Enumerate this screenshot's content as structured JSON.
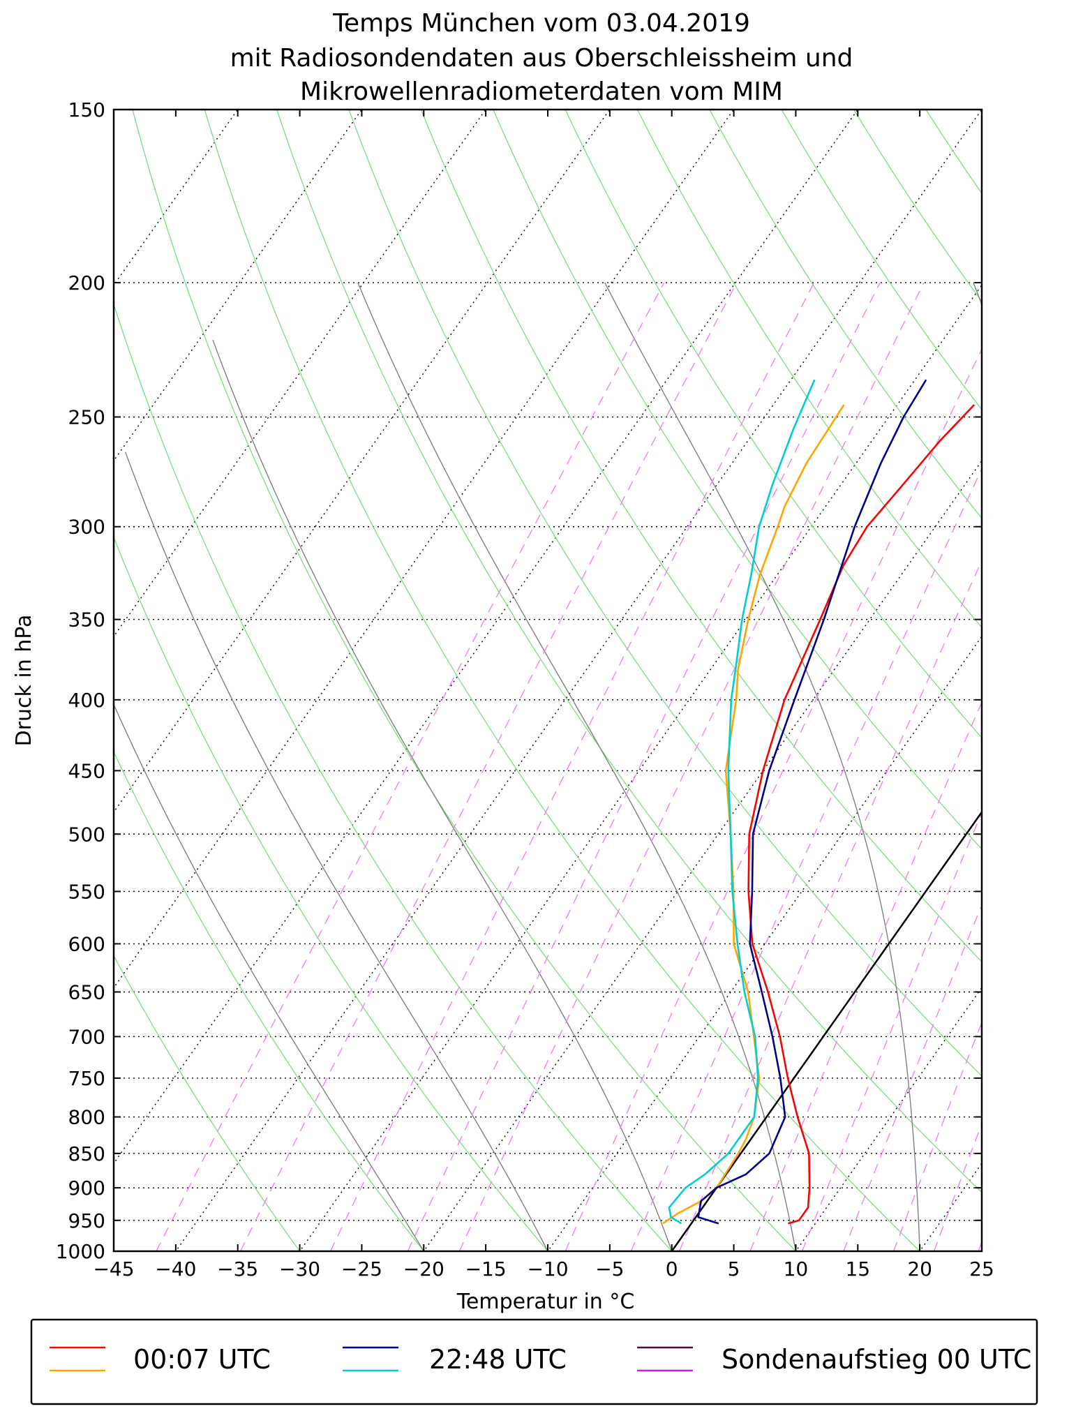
{
  "chart_data": {
    "type": "line",
    "subtype": "skew-T log-p",
    "title": [
      "Temps München vom 03.04.2019",
      "mit Radiosondendaten aus Oberschleissheim und",
      "Mikrowellenradiometerdaten vom MIM"
    ],
    "xlabel": "Temperatur in °C",
    "ylabel": "Druck in hPa",
    "xlim": [
      -45,
      25
    ],
    "ylim": [
      1000,
      150
    ],
    "x_ticks": [
      -45,
      -40,
      -35,
      -30,
      -25,
      -20,
      -15,
      -10,
      -5,
      0,
      5,
      10,
      15,
      20,
      25
    ],
    "y_ticks": [
      150,
      200,
      250,
      300,
      350,
      400,
      450,
      500,
      550,
      600,
      650,
      700,
      750,
      800,
      850,
      900,
      950,
      1000
    ],
    "series": [
      {
        "name": "00:07 UTC Temperatur",
        "color": "#ff0000",
        "points": [
          [
            -23.8,
            245
          ],
          [
            -24.5,
            260
          ],
          [
            -25,
            280
          ],
          [
            -25.5,
            300
          ],
          [
            -25.2,
            320
          ],
          [
            -24,
            350
          ],
          [
            -22.3,
            400
          ],
          [
            -20,
            450
          ],
          [
            -17.5,
            500
          ],
          [
            -14.3,
            550
          ],
          [
            -11,
            600
          ],
          [
            -7,
            650
          ],
          [
            -3.5,
            700
          ],
          [
            -0.5,
            750
          ],
          [
            2.5,
            800
          ],
          [
            5.5,
            850
          ],
          [
            7.5,
            900
          ],
          [
            8.5,
            930
          ],
          [
            8.5,
            950
          ],
          [
            7.8,
            955
          ]
        ]
      },
      {
        "name": "00:07 UTC Taupunkt",
        "color": "#ffa500",
        "points": [
          [
            -34.3,
            245
          ],
          [
            -34,
            270
          ],
          [
            -33.3,
            290
          ],
          [
            -32.7,
            300
          ],
          [
            -31.4,
            325
          ],
          [
            -29.8,
            350
          ],
          [
            -27.8,
            380
          ],
          [
            -26.2,
            400
          ],
          [
            -23,
            450
          ],
          [
            -19,
            500
          ],
          [
            -15.5,
            550
          ],
          [
            -12.5,
            600
          ],
          [
            -8.6,
            650
          ],
          [
            -5.6,
            700
          ],
          [
            -2.8,
            750
          ],
          [
            -1,
            800
          ],
          [
            -0.4,
            830
          ],
          [
            -0.2,
            850
          ],
          [
            0,
            900
          ],
          [
            -0.5,
            920
          ],
          [
            -1.7,
            940
          ],
          [
            -2.3,
            955
          ]
        ]
      },
      {
        "name": "22:48 UTC Temperatur",
        "color": "#00008b",
        "points": [
          [
            -29.1,
            235
          ],
          [
            -28.8,
            250
          ],
          [
            -28,
            270
          ],
          [
            -26.5,
            300
          ],
          [
            -23.7,
            350
          ],
          [
            -21.5,
            400
          ],
          [
            -19.5,
            450
          ],
          [
            -17.2,
            500
          ],
          [
            -14,
            550
          ],
          [
            -11.2,
            600
          ],
          [
            -7.5,
            650
          ],
          [
            -4.1,
            700
          ],
          [
            -1.1,
            750
          ],
          [
            1.5,
            800
          ],
          [
            2.3,
            850
          ],
          [
            1.6,
            880
          ],
          [
            0,
            900
          ],
          [
            -0.5,
            920
          ],
          [
            0.2,
            945
          ],
          [
            2.2,
            955
          ]
        ]
      },
      {
        "name": "22:48 UTC Taupunkt",
        "color": "#00ced1",
        "points": [
          [
            -38.1,
            235
          ],
          [
            -37,
            255
          ],
          [
            -35.5,
            280
          ],
          [
            -34.2,
            300
          ],
          [
            -32.1,
            325
          ],
          [
            -30.3,
            350
          ],
          [
            -28,
            380
          ],
          [
            -26.6,
            400
          ],
          [
            -22.8,
            450
          ],
          [
            -19,
            500
          ],
          [
            -15.6,
            550
          ],
          [
            -12.2,
            600
          ],
          [
            -8.9,
            650
          ],
          [
            -5.5,
            700
          ],
          [
            -2.9,
            750
          ],
          [
            -1,
            800
          ],
          [
            -1,
            850
          ],
          [
            -1.7,
            880
          ],
          [
            -2.5,
            900
          ],
          [
            -2.7,
            930
          ],
          [
            -2,
            945
          ],
          [
            -0.8,
            955
          ]
        ]
      },
      {
        "name": "Sondenaufstieg 00 UTC Temperatur",
        "color": "#4b0d3a",
        "points": []
      },
      {
        "name": "Sondenaufstieg 00 UTC Taupunkt",
        "color": "#cc22cc",
        "points": []
      }
    ],
    "legend": {
      "placement": "bottom",
      "entries": [
        {
          "label": "00:07 UTC",
          "colors": [
            "#ff0000",
            "#ffa500"
          ]
        },
        {
          "label": "22:48 UTC",
          "colors": [
            "#00008b",
            "#00ced1"
          ]
        },
        {
          "label": "Sondenaufstieg 00 UTC",
          "colors": [
            "#4b0d3a",
            "#cc22cc"
          ]
        }
      ]
    },
    "background_lines": {
      "isotherms": {
        "style": "dotted",
        "color": "#000000",
        "values": [
          -120,
          -110,
          -100,
          -90,
          -80,
          -70,
          -60,
          -50,
          -40,
          -30,
          -20,
          -10,
          0,
          10,
          20
        ]
      },
      "dry_adiabats": {
        "style": "solid",
        "color": "#7ddd7d",
        "values": [
          -30,
          -20,
          -10,
          0,
          10,
          20,
          30,
          40,
          50,
          60,
          70,
          80,
          90,
          100,
          110,
          120,
          130,
          140,
          150
        ]
      },
      "moist_adiabats": {
        "style": "solid",
        "color": "#808080",
        "values": [
          -20,
          -10,
          0,
          10,
          20,
          30,
          35
        ]
      },
      "mixing_ratio": {
        "style": "dashed",
        "color": "#ee82ee",
        "values": [
          0.0001,
          0.0002,
          0.0004,
          0.0007,
          0.001,
          0.002,
          0.003,
          0.004,
          0.006,
          0.008,
          0.01,
          0.013,
          0.016,
          0.02,
          0.025,
          0.03,
          0.035,
          0.04,
          0.045,
          0.05
        ]
      },
      "zero_isotherm": {
        "style": "solid",
        "color": "#000000",
        "value": 0
      }
    }
  }
}
